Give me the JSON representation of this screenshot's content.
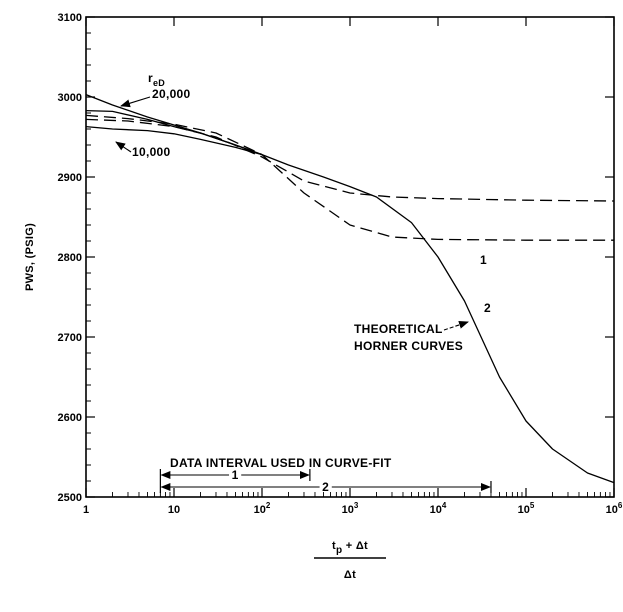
{
  "chart_data": {
    "type": "line",
    "x_scale": "log",
    "xlim": [
      1,
      1000000
    ],
    "ylim": [
      2500,
      3100
    ],
    "grid": false,
    "ylabel": "PWS, (PSIG)",
    "xlabel": {
      "numerator": "t",
      "numerator_sub": "p",
      "numerator_rest": " + Δt",
      "denominator": "Δt"
    },
    "x_ticks": [
      {
        "value": 1,
        "base": "1",
        "exp": ""
      },
      {
        "value": 10,
        "base": "10",
        "exp": ""
      },
      {
        "value": 100,
        "base": "10",
        "exp": "2"
      },
      {
        "value": 1000,
        "base": "10",
        "exp": "3"
      },
      {
        "value": 10000,
        "base": "10",
        "exp": "4"
      },
      {
        "value": 100000,
        "base": "10",
        "exp": "5"
      },
      {
        "value": 1000000,
        "base": "10",
        "exp": "6"
      }
    ],
    "y_ticks": [
      2500,
      2600,
      2700,
      2800,
      2900,
      3000,
      3100
    ],
    "series": [
      {
        "style": "solid",
        "x": [
          1,
          2,
          5,
          10,
          20,
          50,
          100,
          200,
          500,
          1000,
          2000,
          5000,
          10000,
          20000,
          50000,
          100000,
          200000,
          500000,
          1000000
        ],
        "y": [
          3003,
          2990,
          2975,
          2965,
          2955,
          2940,
          2928,
          2915,
          2900,
          2888,
          2875,
          2843,
          2800,
          2745,
          2650,
          2595,
          2560,
          2530,
          2518
        ]
      },
      {
        "style": "solid",
        "x": [
          1,
          2,
          5,
          10,
          20,
          50,
          100
        ],
        "y": [
          2983,
          2982,
          2972,
          2963,
          2955,
          2940,
          2928
        ]
      },
      {
        "style": "solid",
        "x": [
          1,
          2,
          5,
          10,
          20,
          50,
          100
        ],
        "y": [
          2963,
          2960,
          2958,
          2954,
          2947,
          2937,
          2928
        ]
      },
      {
        "style": "dashed",
        "x": [
          1,
          3,
          10,
          30,
          100,
          300,
          1000,
          3000,
          10000,
          100000,
          1000000
        ],
        "y": [
          2972,
          2970,
          2963,
          2950,
          2925,
          2895,
          2880,
          2875,
          2873,
          2871,
          2870
        ]
      },
      {
        "style": "dashed",
        "x": [
          1,
          3,
          10,
          30,
          100,
          300,
          1000,
          3000,
          10000,
          100000,
          1000000
        ],
        "y": [
          2977,
          2973,
          2966,
          2955,
          2928,
          2880,
          2840,
          2825,
          2822,
          2821,
          2821
        ]
      }
    ],
    "annotations": {
      "red_label": "r",
      "red_sub": "eD",
      "red_20000": "20,000",
      "red_10000": "10,000",
      "curve1": "1",
      "curve2": "2",
      "theoretical_line1": "THEORETICAL",
      "theoretical_line2": "HORNER CURVES",
      "data_interval": "DATA INTERVAL USED IN CURVE-FIT",
      "interval1": "1",
      "interval2": "2"
    },
    "intervals": [
      {
        "label": "1",
        "from": 7,
        "to": 350
      },
      {
        "label": "2",
        "from": 7,
        "to": 40000
      }
    ]
  }
}
